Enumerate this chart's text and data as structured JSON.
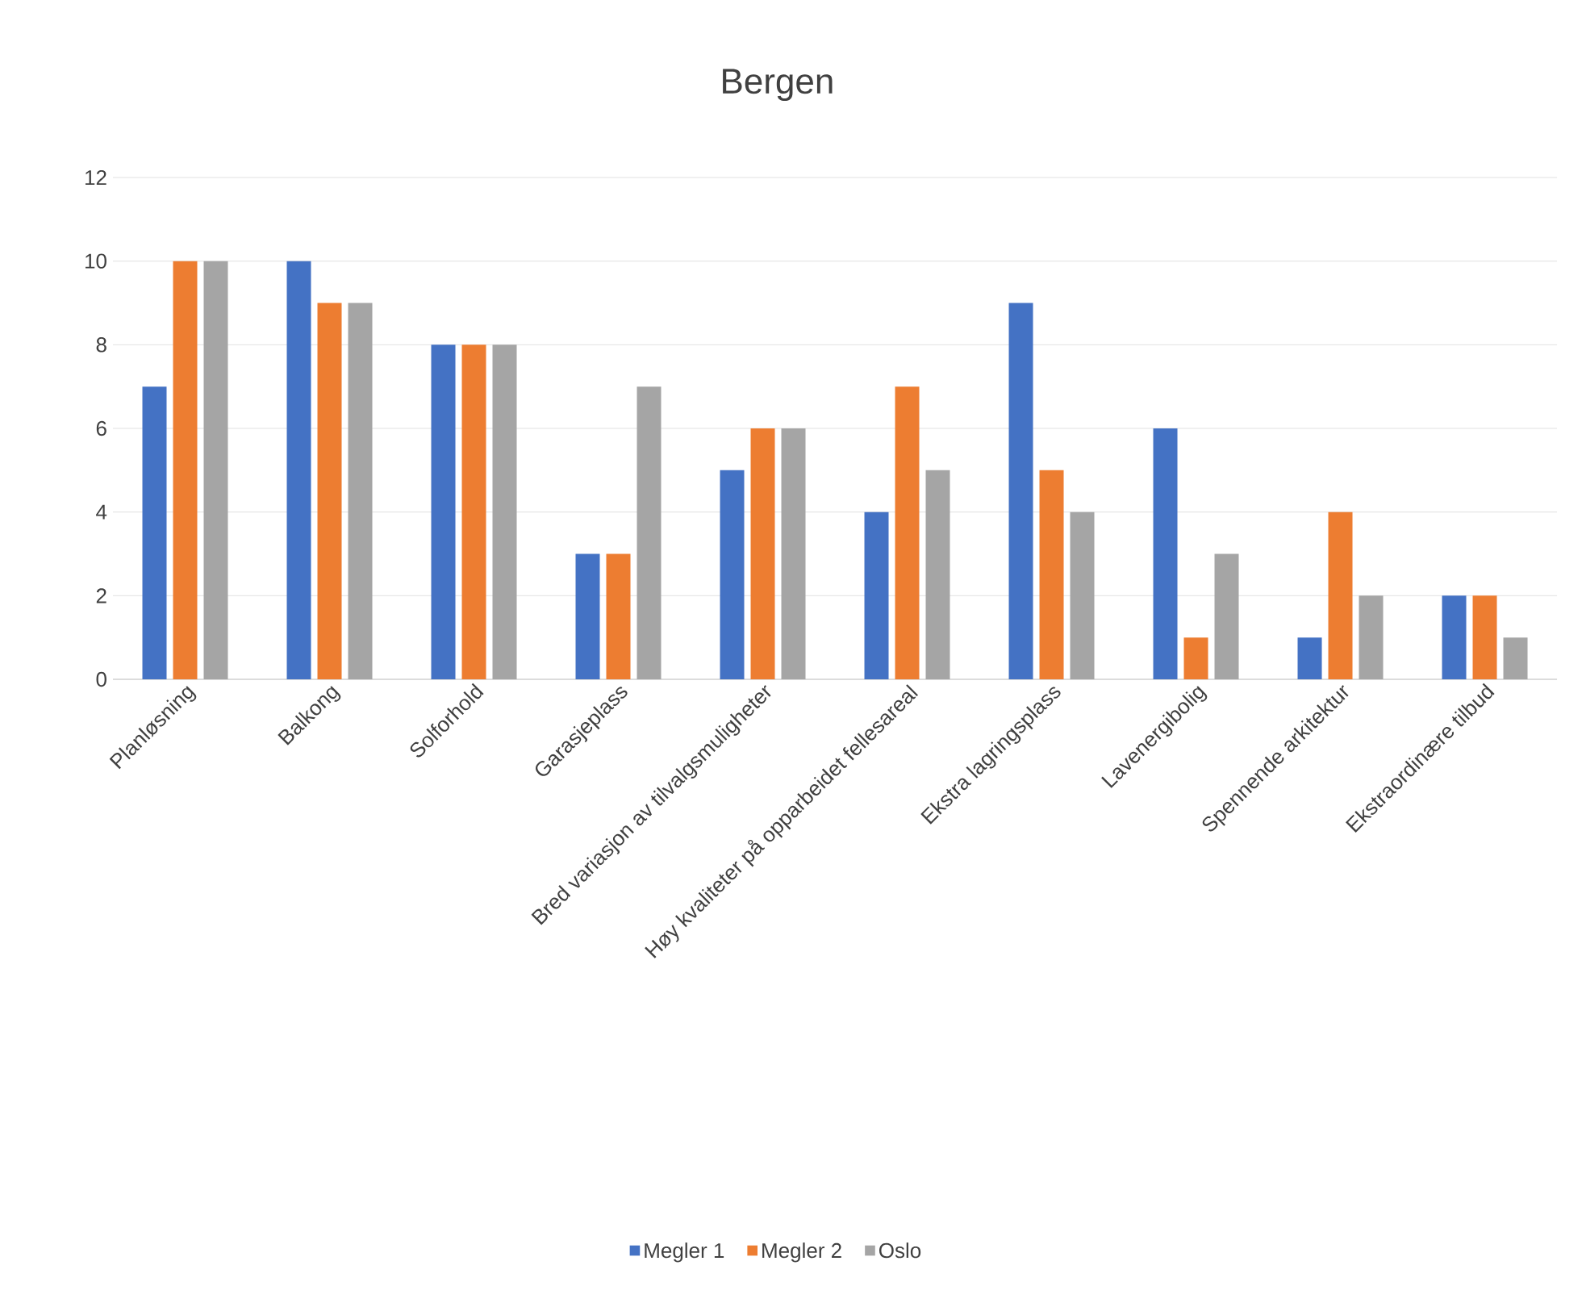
{
  "chart_data": {
    "type": "bar",
    "title": "Bergen",
    "categories": [
      "Planløsning",
      "Balkong",
      "Solforhold",
      "Garasjeplass",
      "Bred variasjon av tilvalgsmuligheter",
      "Høy kvaliteter på opparbeidet fellesareal",
      "Ekstra lagringsplass",
      "Lavenergibolig",
      "Spennende arkitektur",
      "Ekstraordinære tilbud"
    ],
    "series": [
      {
        "name": "Megler 1",
        "color": "#4472c4",
        "values": [
          7,
          10,
          8,
          3,
          5,
          4,
          9,
          6,
          1,
          2
        ]
      },
      {
        "name": "Megler 2",
        "color": "#ed7d31",
        "values": [
          10,
          9,
          8,
          3,
          6,
          7,
          5,
          1,
          4,
          2
        ]
      },
      {
        "name": "Oslo",
        "color": "#a5a5a5",
        "values": [
          10,
          9,
          8,
          7,
          6,
          5,
          4,
          3,
          2,
          1
        ]
      }
    ],
    "ylim": [
      0,
      12
    ],
    "yticks": [
      0,
      2,
      4,
      6,
      8,
      10,
      12
    ],
    "grid": "y",
    "legend": "bottom"
  }
}
